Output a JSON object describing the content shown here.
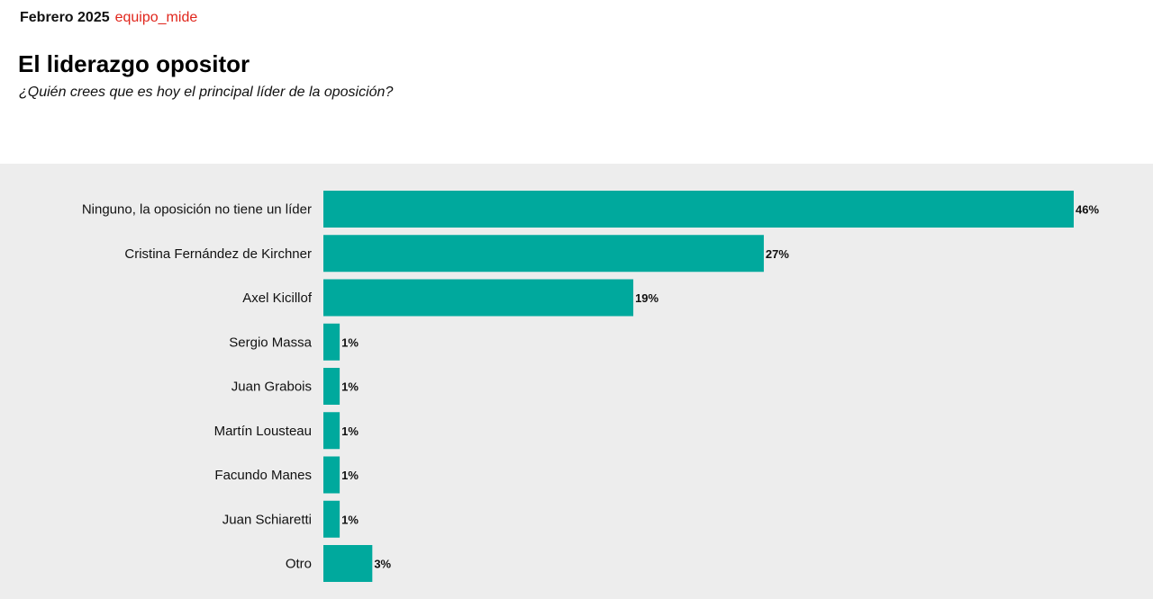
{
  "header": {
    "date": "Febrero 2025",
    "brand": "equipo_mide"
  },
  "colors": {
    "bar": "#00a99d",
    "brand": "#e0251b",
    "panel_background": "#ededed"
  },
  "chart_data": {
    "type": "bar",
    "orientation": "horizontal",
    "title": "El liderazgo opositor",
    "subtitle": "¿Quién crees que es hoy el principal líder de la oposición?",
    "categories": [
      "Ninguno, la oposición no tiene un líder",
      "Cristina Fernández de Kirchner",
      "Axel Kicillof",
      "Sergio Massa",
      "Juan Grabois",
      "Martín Lousteau",
      "Facundo Manes",
      "Juan Schiaretti",
      "Otro"
    ],
    "values": [
      46,
      27,
      19,
      1,
      1,
      1,
      1,
      1,
      3
    ],
    "value_labels": [
      "46%",
      "27%",
      "19%",
      "1%",
      "1%",
      "1%",
      "1%",
      "1%",
      "3%"
    ],
    "unit": "%",
    "xlim": [
      0,
      46
    ],
    "grid": false,
    "legend": "none"
  }
}
